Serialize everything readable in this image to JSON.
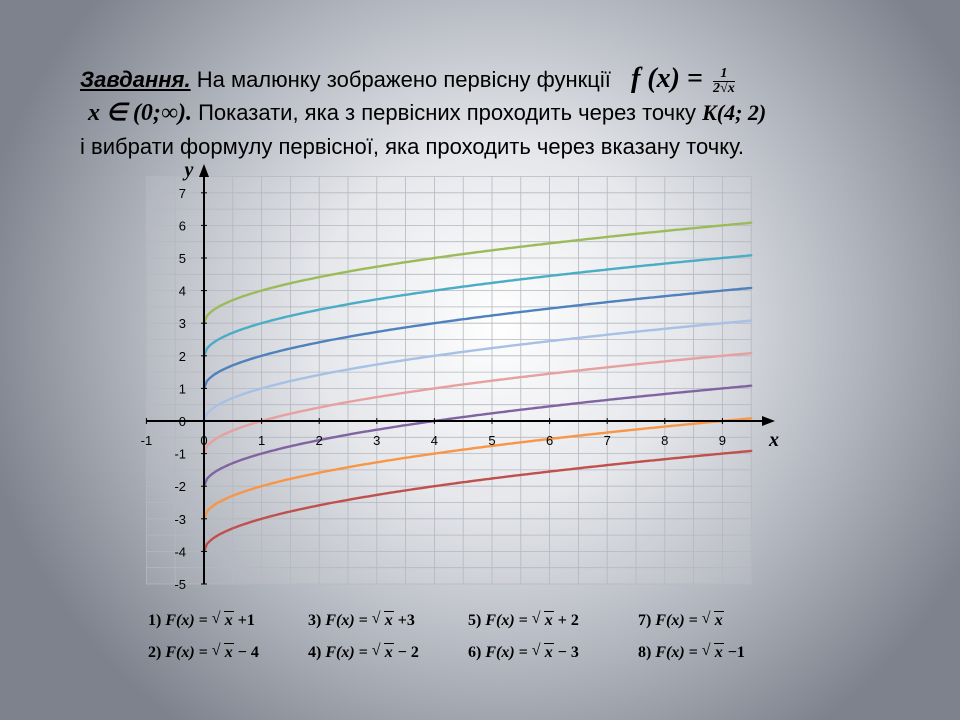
{
  "task": {
    "label": "Завдання.",
    "line1_text": " На малюнку зображено первісну функції",
    "fx_lhs": "f (x) =",
    "fx_num": "1",
    "fx_den": "2√x",
    "domain": "x ∈ (0;∞).",
    "line2_text": " Показати, яка з первісних проходить через точку ",
    "point": "K(4; 2)",
    "line3_text": "і вибрати формулу первісної, яка проходить через вказану точку."
  },
  "chart_data": {
    "type": "line",
    "xlabel": "x",
    "ylabel": "y",
    "xlim": [
      -1,
      9.5
    ],
    "ylim": [
      -5,
      7.5
    ],
    "x_ticks": [
      "-1",
      "0",
      "1",
      "2",
      "3",
      "4",
      "5",
      "6",
      "7",
      "8",
      "9"
    ],
    "y_ticks": [
      "-5",
      "-4",
      "-3",
      "-2",
      "-1",
      "0",
      "1",
      "2",
      "3",
      "4",
      "5",
      "6",
      "7"
    ],
    "grid": true,
    "x_values": [
      0,
      0.25,
      0.5,
      1,
      2,
      3,
      4,
      5,
      6,
      7,
      8,
      9,
      9.5
    ],
    "series": [
      {
        "color": "#9bbb59",
        "offset": 3,
        "values": [
          3,
          3.5,
          3.71,
          4,
          4.41,
          4.73,
          5,
          5.24,
          5.45,
          5.65,
          5.83,
          6,
          6.08
        ]
      },
      {
        "color": "#4bacc6",
        "offset": 2,
        "values": [
          2,
          2.5,
          2.71,
          3,
          3.41,
          3.73,
          4,
          4.24,
          4.45,
          4.65,
          4.83,
          5,
          5.08
        ]
      },
      {
        "color": "#4f81bd",
        "offset": 1,
        "values": [
          1,
          1.5,
          1.71,
          2,
          2.41,
          2.73,
          3,
          3.24,
          3.45,
          3.65,
          3.83,
          4,
          4.08
        ]
      },
      {
        "color": "#a7c0e6",
        "offset": 0,
        "values": [
          0,
          0.5,
          0.71,
          1,
          1.41,
          1.73,
          2,
          2.24,
          2.45,
          2.65,
          2.83,
          3,
          3.08
        ]
      },
      {
        "color": "#e6a0a0",
        "offset": -1,
        "values": [
          -1,
          -0.5,
          -0.29,
          0,
          0.41,
          0.73,
          1,
          1.24,
          1.45,
          1.65,
          1.83,
          2,
          2.08
        ]
      },
      {
        "color": "#8064a2",
        "offset": -2,
        "values": [
          -2,
          -1.5,
          -1.29,
          -1,
          -0.59,
          -0.27,
          0,
          0.24,
          0.45,
          0.65,
          0.83,
          1,
          1.08
        ]
      },
      {
        "color": "#f79646",
        "offset": -3,
        "values": [
          -3,
          -2.5,
          -2.29,
          -2,
          -1.59,
          -1.27,
          -1,
          -0.76,
          -0.55,
          -0.35,
          -0.17,
          0,
          0.08
        ]
      },
      {
        "color": "#c0504d",
        "offset": -4,
        "values": [
          -4,
          -3.5,
          -3.29,
          -3,
          -2.59,
          -2.27,
          -2,
          -1.76,
          -1.55,
          -1.35,
          -1.17,
          -1,
          -0.92
        ]
      }
    ]
  },
  "answers": [
    {
      "num": "1)",
      "lhs": "F(x) = ",
      "rad": "x",
      "rest": " +1"
    },
    {
      "num": "3)",
      "lhs": "F(x) = ",
      "rad": "x",
      "rest": " +3"
    },
    {
      "num": "5)",
      "lhs": "F(x) = ",
      "rad": "x",
      "rest": " + 2"
    },
    {
      "num": "7)",
      "lhs": "F(x) = ",
      "rad": "x",
      "rest": ""
    },
    {
      "num": "2)",
      "lhs": "F(x) = ",
      "rad": "x",
      "rest": " − 4"
    },
    {
      "num": "4)",
      "lhs": "F(x) = ",
      "rad": "x",
      "rest": " − 2"
    },
    {
      "num": "6)",
      "lhs": "F(x) = ",
      "rad": "x",
      "rest": " − 3"
    },
    {
      "num": "8)",
      "lhs": "F(x) = ",
      "rad": "x",
      "rest": " −1"
    }
  ]
}
